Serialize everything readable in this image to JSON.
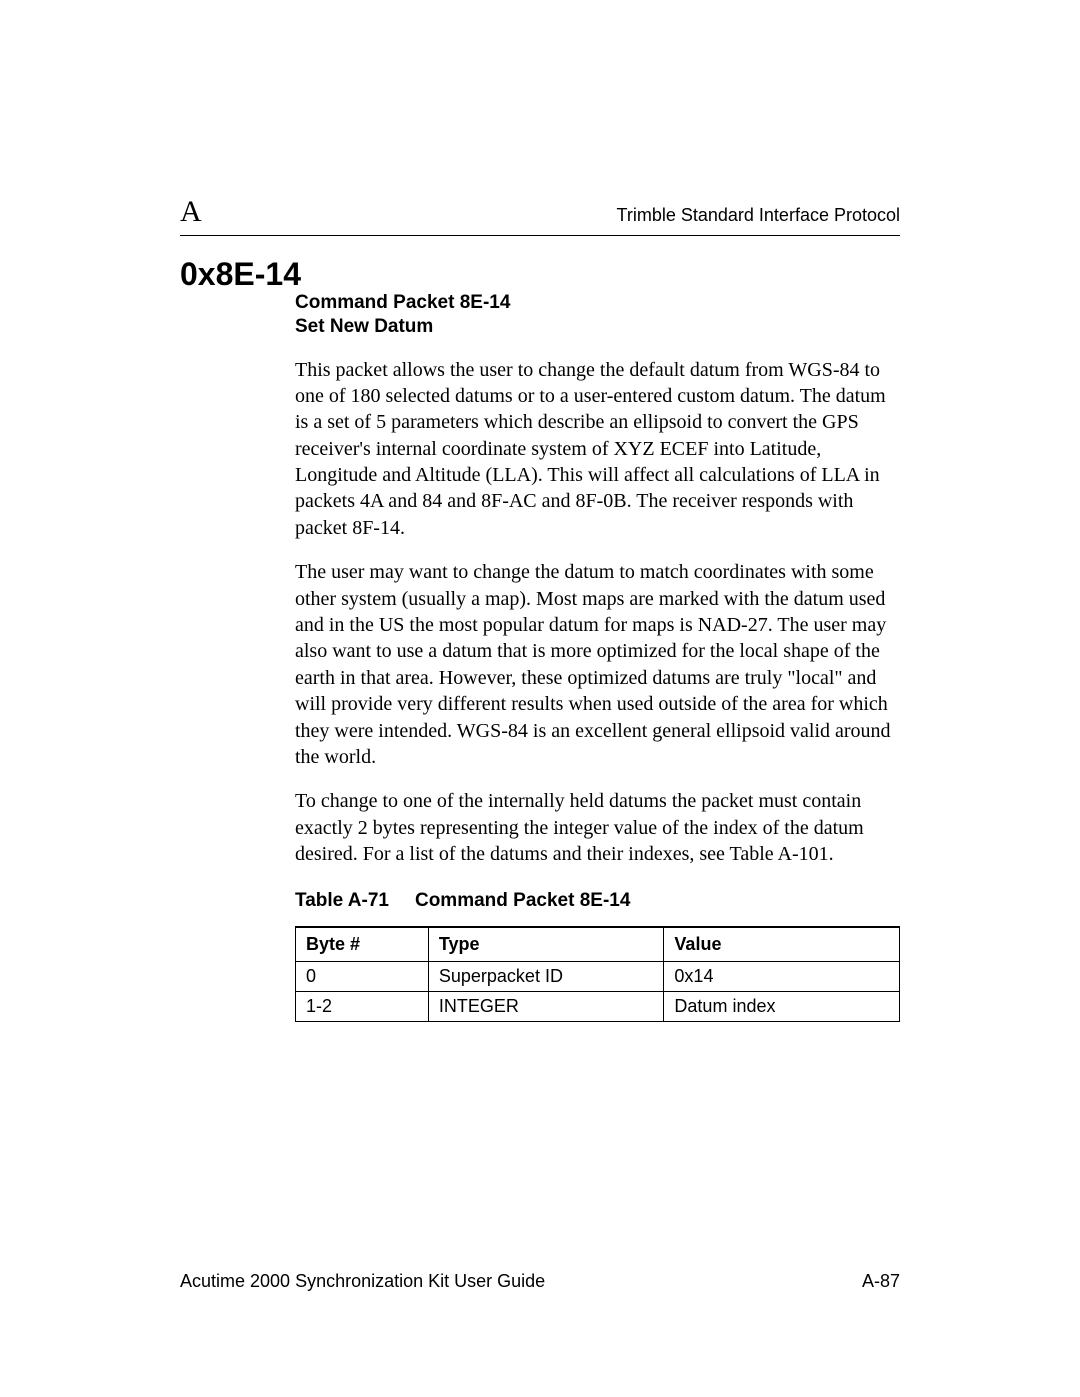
{
  "header": {
    "appendix_letter": "A",
    "doc_title": "Trimble Standard Interface Protocol"
  },
  "section": {
    "number": "0x8E-14",
    "subheading_line1": "Command Packet 8E-14",
    "subheading_line2": "Set New Datum"
  },
  "paragraphs": {
    "p1": "This packet allows the user to change the default datum from WGS-84 to one of 180 selected datums or to a user-entered custom datum. The datum is a set of 5 parameters which describe an ellipsoid to convert the GPS receiver's internal coordinate system of XYZ ECEF into Latitude, Longitude and Altitude (LLA). This will affect all calculations of LLA in packets 4A and 84 and 8F-AC and 8F-0B. The receiver responds with packet 8F-14.",
    "p2": "The user may want to change the datum to match coordinates with some other system (usually a map). Most maps are marked with the datum used and in the US the most popular datum for maps is NAD-27. The user may also want to use a datum that is more optimized for the local shape of the earth in that area. However, these optimized datums are truly \"local\" and will provide very different results when used outside of the area for which they were intended. WGS-84 is an excellent general ellipsoid valid around the world.",
    "p3": "To change to one of the internally held datums the packet must contain exactly 2 bytes representing the integer value of the index of the datum desired. For a list of the datums and their indexes, see Table A-101."
  },
  "table": {
    "caption_label": "Table A-71",
    "caption_title": "Command Packet 8E-14",
    "columns": [
      "Byte #",
      "Type",
      "Value"
    ],
    "rows": [
      [
        "0",
        "Superpacket ID",
        "0x14"
      ],
      [
        "1-2",
        "INTEGER",
        "Datum index"
      ]
    ],
    "col_widths_pct": [
      22,
      39,
      39
    ]
  },
  "footer": {
    "left": "Acutime 2000 Synchronization Kit User Guide",
    "right": "A-87"
  }
}
